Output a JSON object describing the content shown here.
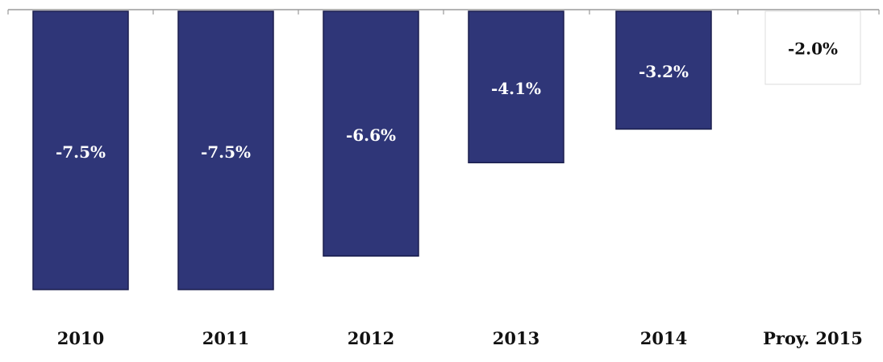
{
  "chart_data": {
    "type": "bar",
    "categories": [
      "2010",
      "2011",
      "2012",
      "2013",
      "2014",
      "Proy. 2015"
    ],
    "values": [
      -7.5,
      -7.5,
      -6.6,
      -4.1,
      -3.2,
      -2.0
    ],
    "data_labels": [
      "-7.5%",
      "-7.5%",
      "-6.6%",
      "-4.1%",
      "-3.2%",
      "-2.0%"
    ],
    "projected": [
      false,
      false,
      false,
      false,
      false,
      true
    ],
    "title": "",
    "xlabel": "",
    "ylabel": "",
    "ylim": [
      -7.5,
      0
    ],
    "grid": false,
    "legend": "none",
    "colors": {
      "bar_fill": "#2f3678",
      "bar_stroke": "#1b1f4e",
      "projected_fill": "#ffffff",
      "projected_stroke": "#dcdcdc",
      "axis": "#9a9a9a",
      "label_on_bar": "#ffffff",
      "label_projected": "#111111"
    }
  }
}
